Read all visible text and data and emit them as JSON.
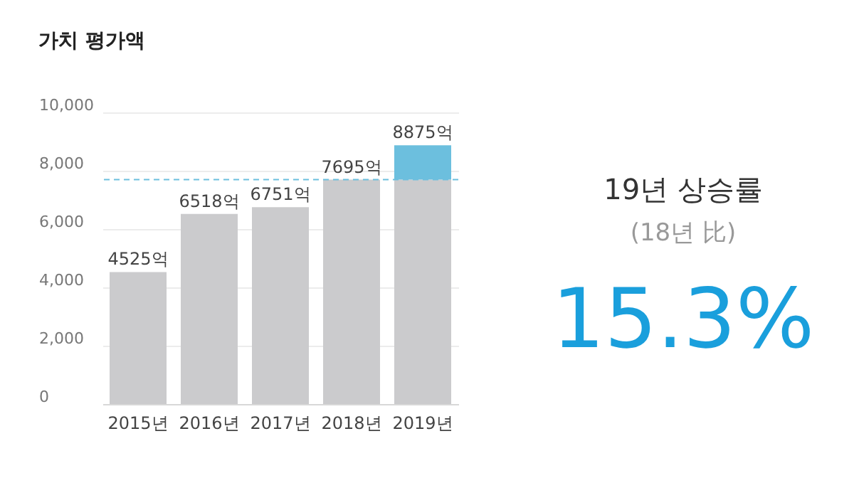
{
  "chart_data": {
    "type": "bar",
    "title": "가치 평가액",
    "categories": [
      "2015년",
      "2016년",
      "2017년",
      "2018년",
      "2019년"
    ],
    "stacked": true,
    "series": [
      {
        "color": "#cbcbcd",
        "values": [
          4525,
          6518,
          6751,
          7695,
          7695
        ]
      },
      {
        "color": "#6cbfde",
        "values": [
          null,
          null,
          null,
          null,
          1180
        ]
      }
    ],
    "totals": [
      "4525억",
      "6518억",
      "6751억",
      "7695억",
      "8875억"
    ],
    "ylim": [
      0,
      10000
    ],
    "yticks": [
      {
        "value": 0,
        "label": "0"
      },
      {
        "value": 2000,
        "label": "2,000"
      },
      {
        "value": 4000,
        "label": "4,000"
      },
      {
        "value": 6000,
        "label": "6,000"
      },
      {
        "value": 8000,
        "label": "8,000"
      },
      {
        "value": 10000,
        "label": "10,000"
      }
    ],
    "grid": "y",
    "ref_lines": [
      {
        "axis": "y",
        "value": 7695,
        "color": "#6cbfde",
        "line_style": "dashed"
      }
    ],
    "annotations": [
      "19년 상승률",
      "(18년 比)",
      "15.3%"
    ]
  }
}
